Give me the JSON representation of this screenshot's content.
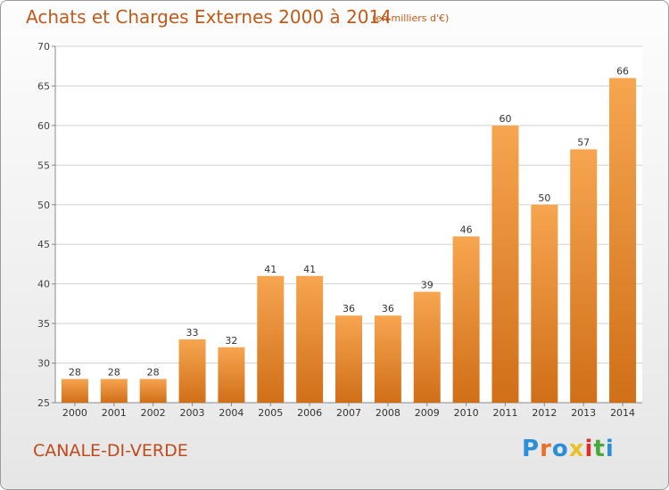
{
  "header": {
    "title": "Achats et Charges Externes 2000 à 2014",
    "subtitle": "(en milliers d'€)"
  },
  "footer": {
    "commune": "CANALE-DI-VERDE",
    "logo_text": "Proxiti",
    "logo_colors": [
      "#2a8fd8",
      "#e8702a",
      "#2a8fd8",
      "#e8c02a",
      "#d8302a",
      "#4aa83a",
      "#2a8fd8"
    ]
  },
  "chart_data": {
    "type": "bar",
    "categories": [
      "2000",
      "2001",
      "2002",
      "2003",
      "2004",
      "2005",
      "2006",
      "2007",
      "2008",
      "2009",
      "2010",
      "2011",
      "2012",
      "2013",
      "2014"
    ],
    "values": [
      28,
      28,
      28,
      33,
      32,
      41,
      41,
      36,
      36,
      39,
      46,
      60,
      50,
      57,
      66
    ],
    "ylim": [
      25,
      70
    ],
    "yticks": [
      25,
      30,
      35,
      40,
      45,
      50,
      55,
      60,
      65,
      70
    ],
    "grid": true,
    "bar_color_top": "#f7a550",
    "bar_color_bottom": "#d06f18"
  }
}
